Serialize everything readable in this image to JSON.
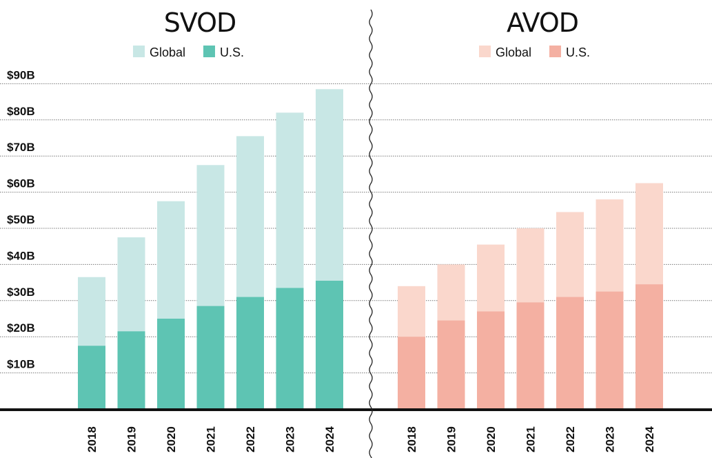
{
  "chart_data": [
    {
      "type": "bar",
      "title": "SVOD",
      "categories": [
        "2018",
        "2019",
        "2020",
        "2021",
        "2022",
        "2023",
        "2024"
      ],
      "series": [
        {
          "name": "Global",
          "values": [
            36.5,
            47.5,
            57.5,
            67.5,
            75.5,
            82,
            88.5
          ]
        },
        {
          "name": "U.S.",
          "values": [
            17.5,
            21.5,
            25,
            28.5,
            31,
            33.5,
            35.5
          ]
        }
      ],
      "colors": {
        "Global": "#c8e7e5",
        "U.S.": "#5ec4b3"
      },
      "ylim": [
        0,
        90
      ],
      "yticks": [
        10,
        20,
        30,
        40,
        50,
        60,
        70,
        80,
        90
      ],
      "ytick_labels": [
        "$10B",
        "$20B",
        "$30B",
        "$40B",
        "$50B",
        "$60B",
        "$70B",
        "$80B",
        "$90B"
      ],
      "legend": "top-center",
      "grid": true
    },
    {
      "type": "bar",
      "title": "AVOD",
      "categories": [
        "2018",
        "2019",
        "2020",
        "2021",
        "2022",
        "2023",
        "2024"
      ],
      "series": [
        {
          "name": "Global",
          "values": [
            34,
            40,
            45.5,
            50,
            54.5,
            58,
            62.5
          ]
        },
        {
          "name": "U.S.",
          "values": [
            20,
            24.5,
            27,
            29.5,
            31,
            32.5,
            34.5
          ]
        }
      ],
      "colors": {
        "Global": "#fad7cc",
        "U.S.": "#f4b0a2"
      },
      "ylim": [
        0,
        90
      ],
      "yticks": [
        10,
        20,
        30,
        40,
        50,
        60,
        70,
        80,
        90
      ],
      "legend": "top-center",
      "grid": true
    }
  ]
}
